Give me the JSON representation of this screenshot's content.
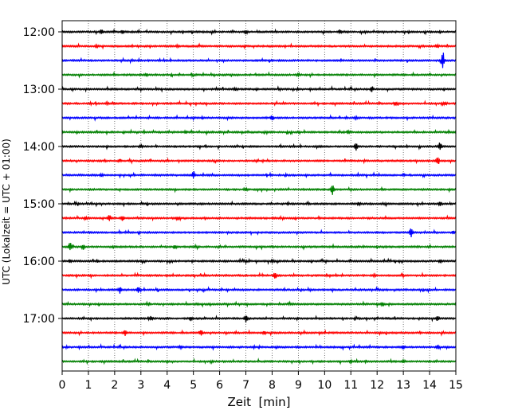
{
  "chart_data": {
    "type": "line",
    "title": "",
    "xlabel": "Zeit  [min]",
    "ylabel": "UTC (Lokalzeit = UTC + 01:00)",
    "xlim": [
      0,
      15
    ],
    "x_ticks": [
      "0",
      "1",
      "2",
      "3",
      "4",
      "5",
      "6",
      "7",
      "8",
      "9",
      "10",
      "11",
      "12",
      "13",
      "14",
      "15"
    ],
    "y_ticks": [
      "12:00",
      "13:00",
      "14:00",
      "15:00",
      "16:00",
      "17:00"
    ],
    "grid": {
      "x": true,
      "y": false,
      "style": "dotted"
    },
    "trace_interval_min": 15,
    "trace_colors": [
      "#000000",
      "#ff0000",
      "#0000ff",
      "#008000"
    ],
    "traces": [
      {
        "label": "12:00",
        "color": "#000000",
        "events": [
          [
            1.5,
            0.4
          ],
          [
            2.3,
            0.3
          ],
          [
            7.0,
            0.3
          ],
          [
            10.6,
            0.3
          ]
        ]
      },
      {
        "label": "12:15",
        "color": "#ff0000",
        "events": [
          [
            1.3,
            0.2
          ],
          [
            4.4,
            0.2
          ],
          [
            14.3,
            0.3
          ]
        ]
      },
      {
        "label": "12:30",
        "color": "#0000ff",
        "events": [
          [
            14.5,
            1.7
          ]
        ]
      },
      {
        "label": "12:45",
        "color": "#008000",
        "events": [
          [
            3.2,
            0.2
          ],
          [
            9.0,
            0.2
          ]
        ]
      },
      {
        "label": "13:00",
        "color": "#000000",
        "events": [
          [
            11.8,
            0.5
          ],
          [
            6.6,
            0.2
          ]
        ]
      },
      {
        "label": "13:15",
        "color": "#ff0000",
        "events": [
          [
            1.7,
            0.2
          ],
          [
            12.7,
            0.3
          ],
          [
            14.6,
            0.2
          ]
        ]
      },
      {
        "label": "13:30",
        "color": "#0000ff",
        "events": [
          [
            8.0,
            0.4
          ],
          [
            11.2,
            0.2
          ]
        ]
      },
      {
        "label": "13:45",
        "color": "#008000",
        "events": [
          [
            4.7,
            0.2
          ],
          [
            10.9,
            0.2
          ]
        ]
      },
      {
        "label": "14:00",
        "color": "#000000",
        "events": [
          [
            11.2,
            0.8
          ],
          [
            14.4,
            0.8
          ],
          [
            3.0,
            0.2
          ]
        ]
      },
      {
        "label": "14:15",
        "color": "#ff0000",
        "events": [
          [
            14.3,
            0.6
          ],
          [
            2.2,
            0.2
          ]
        ]
      },
      {
        "label": "14:30",
        "color": "#0000ff",
        "events": [
          [
            5.0,
            0.7
          ],
          [
            1.5,
            0.2
          ]
        ]
      },
      {
        "label": "14:45",
        "color": "#008000",
        "events": [
          [
            10.3,
            1.1
          ],
          [
            7.0,
            0.2
          ]
        ]
      },
      {
        "label": "15:00",
        "color": "#000000",
        "events": [
          [
            11.3,
            0.3
          ],
          [
            14.4,
            0.3
          ]
        ]
      },
      {
        "label": "15:15",
        "color": "#ff0000",
        "events": [
          [
            1.8,
            0.6
          ],
          [
            2.3,
            0.5
          ],
          [
            0.9,
            0.3
          ],
          [
            4.4,
            0.3
          ]
        ]
      },
      {
        "label": "15:30",
        "color": "#0000ff",
        "events": [
          [
            13.3,
            0.9
          ],
          [
            14.9,
            0.3
          ]
        ]
      },
      {
        "label": "15:45",
        "color": "#008000",
        "events": [
          [
            0.3,
            0.8
          ],
          [
            0.8,
            0.4
          ],
          [
            4.3,
            0.3
          ]
        ]
      },
      {
        "label": "16:00",
        "color": "#000000",
        "events": [
          [
            0.3,
            0.3
          ],
          [
            8.0,
            0.2
          ],
          [
            14.4,
            0.3
          ]
        ]
      },
      {
        "label": "16:15",
        "color": "#ff0000",
        "events": [
          [
            8.1,
            0.5
          ],
          [
            11.9,
            0.2
          ]
        ]
      },
      {
        "label": "16:30",
        "color": "#0000ff",
        "events": [
          [
            2.2,
            0.6
          ],
          [
            2.9,
            0.6
          ]
        ]
      },
      {
        "label": "16:45",
        "color": "#008000",
        "events": [
          [
            12.2,
            0.3
          ]
        ]
      },
      {
        "label": "17:00",
        "color": "#000000",
        "events": [
          [
            7.0,
            0.8
          ],
          [
            4.9,
            0.3
          ],
          [
            14.3,
            0.4
          ],
          [
            3.4,
            0.2
          ]
        ]
      },
      {
        "label": "17:15",
        "color": "#ff0000",
        "events": [
          [
            2.4,
            0.6
          ],
          [
            5.3,
            0.6
          ],
          [
            7.7,
            0.3
          ]
        ]
      },
      {
        "label": "17:30",
        "color": "#0000ff",
        "events": [
          [
            13.0,
            0.3
          ],
          [
            14.3,
            0.3
          ],
          [
            4.5,
            0.2
          ]
        ]
      },
      {
        "label": "17:45",
        "color": "#008000",
        "events": [
          [
            11.0,
            0.2
          ],
          [
            13.0,
            0.2
          ]
        ]
      }
    ]
  }
}
